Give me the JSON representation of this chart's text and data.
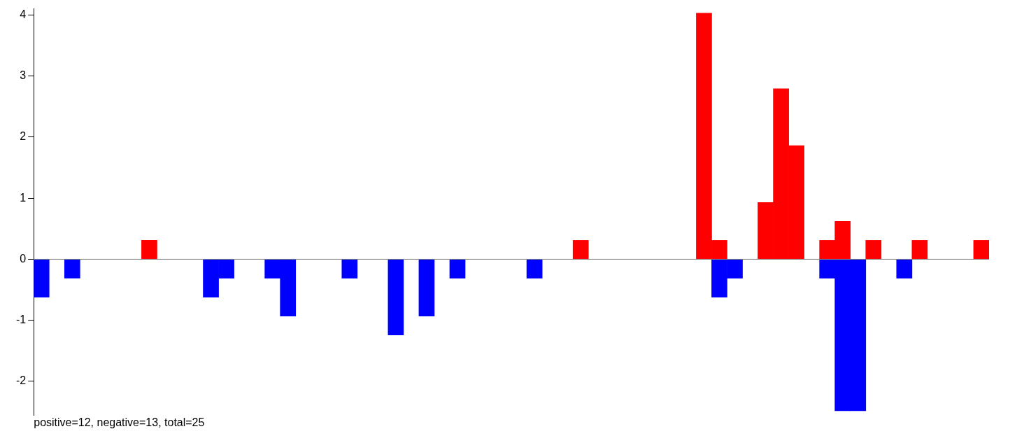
{
  "chart_data": {
    "type": "bar",
    "categories": [
      null,
      null,
      null,
      null,
      null,
      null,
      null,
      null,
      null,
      null,
      null,
      null,
      null,
      null,
      null,
      null,
      null,
      null,
      null,
      null,
      null,
      null,
      null,
      null,
      null,
      null,
      null,
      null,
      null,
      null,
      null,
      null,
      null,
      null,
      null,
      null,
      null,
      null,
      null,
      null,
      null,
      null,
      null,
      null,
      null,
      null,
      null,
      null,
      null,
      null,
      null,
      null,
      null,
      null,
      null,
      null,
      null,
      null,
      null,
      null,
      null,
      null
    ],
    "stacked": true,
    "series": [
      {
        "color": "#ff0000",
        "values": [
          null,
          null,
          null,
          null,
          null,
          null,
          null,
          0.31,
          null,
          null,
          null,
          null,
          null,
          null,
          null,
          null,
          null,
          null,
          null,
          null,
          null,
          null,
          null,
          null,
          null,
          null,
          null,
          null,
          null,
          null,
          null,
          null,
          null,
          null,
          null,
          0.31,
          null,
          null,
          null,
          null,
          null,
          null,
          null,
          4.03,
          0.31,
          null,
          null,
          0.93,
          2.79,
          1.86,
          null,
          0.31,
          0.62,
          null,
          0.31,
          null,
          null,
          0.31,
          null,
          null,
          null,
          0.31
        ]
      },
      {
        "color": "#0000ff",
        "values": [
          -0.62,
          null,
          -0.31,
          null,
          null,
          null,
          null,
          null,
          null,
          null,
          null,
          -0.62,
          -0.31,
          null,
          null,
          -0.31,
          -0.93,
          null,
          null,
          null,
          -0.31,
          null,
          null,
          -1.24,
          null,
          -0.93,
          null,
          -0.31,
          null,
          null,
          null,
          null,
          -0.31,
          null,
          null,
          null,
          null,
          null,
          null,
          null,
          null,
          null,
          null,
          null,
          -0.62,
          -0.31,
          null,
          null,
          null,
          null,
          null,
          -0.31,
          -2.48,
          -2.48,
          null,
          null,
          -0.31,
          null,
          null,
          null,
          null,
          null
        ]
      }
    ],
    "ylim": [
      -2.55,
      4.1
    ],
    "yticks": [
      -2,
      -1,
      0,
      1,
      2,
      3,
      4
    ],
    "ref_lines": [
      {
        "axis": "y",
        "value": 0,
        "color": "#808080"
      }
    ],
    "annotations": [
      "positive=12, negative=13, total=25"
    ],
    "grid": false,
    "legend": false,
    "tick_labels": "y"
  }
}
